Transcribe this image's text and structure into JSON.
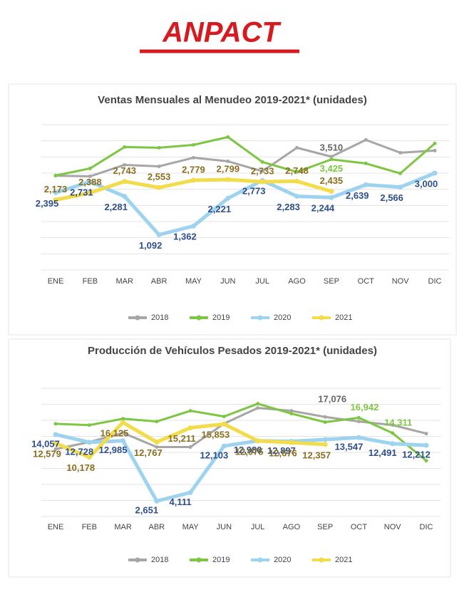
{
  "logo": "ANPACT",
  "chart_data": [
    {
      "type": "line",
      "title": "Ventas Mensuales al Menudeo 2019-2021* (unidades)",
      "categories": [
        "ENE",
        "FEB",
        "MAR",
        "ABR",
        "MAY",
        "JUN",
        "JUL",
        "AGO",
        "SEP",
        "OCT",
        "NOV",
        "DIC"
      ],
      "ylim": [
        0,
        4500
      ],
      "yticks": [
        0,
        500,
        1000,
        1500,
        2000,
        2500,
        3000,
        3500,
        4000,
        4500
      ],
      "grid": true,
      "series": [
        {
          "name": "2018",
          "color": "#a6a6a6",
          "label_color": "#666666",
          "values": [
            2920,
            2900,
            3255,
            3210,
            3477,
            3366,
            3057,
            3786,
            3510,
            4029,
            3631,
            3697
          ],
          "value_labels": [
            null,
            null,
            null,
            null,
            null,
            null,
            null,
            null,
            "3,510",
            null,
            null,
            null
          ]
        },
        {
          "name": "2019",
          "color": "#7dc642",
          "label_color": "#7dc642",
          "values": [
            2925,
            3145,
            3808,
            3786,
            3874,
            4117,
            3344,
            3035,
            3425,
            3300,
            2991,
            3918
          ],
          "value_labels": [
            null,
            null,
            null,
            null,
            null,
            null,
            null,
            null,
            "3,425",
            null,
            null,
            null
          ]
        },
        {
          "name": "2020",
          "color": "#9dd3ef",
          "label_color": "#2e4f8a",
          "values": [
            2395,
            2731,
            2281,
            1092,
            1362,
            2221,
            2773,
            2283,
            2244,
            2639,
            2566,
            3000
          ],
          "value_labels": [
            "2,395",
            "2,731",
            "2,281",
            "1,092",
            "1,362",
            "2,221",
            "2,773",
            "2,283",
            "2,244",
            "2,639",
            "2,566",
            "3,000"
          ]
        },
        {
          "name": "2021",
          "color": "#f2dc4a",
          "label_color": "#8a6d1d",
          "values": [
            2173,
            2388,
            2743,
            2553,
            2779,
            2799,
            2733,
            2748,
            2435,
            null,
            null,
            null
          ],
          "value_labels": [
            "2,173",
            "2,388",
            "2,743",
            "2,553",
            "2,779",
            "2,799",
            "2,733",
            "2,748",
            "2,435",
            null,
            null,
            null
          ]
        }
      ]
    },
    {
      "type": "line",
      "title": "Producción de Vehículos Pesados 2019-2021* (unidades)",
      "categories": [
        "ENE",
        "FEB",
        "MAR",
        "ABR",
        "MAY",
        "JUN",
        "JUL",
        "AGO",
        "SEP",
        "OCT",
        "NOV",
        "DIC"
      ],
      "ylim": [
        0,
        22000
      ],
      "yticks": [
        0,
        2750,
        5500,
        8250,
        11000,
        13750,
        16500,
        19250,
        22000
      ],
      "grid": true,
      "series": [
        {
          "name": "2018",
          "color": "#a6a6a6",
          "label_color": "#666666",
          "values": [
            11550,
            12770,
            14350,
            11910,
            11910,
            15930,
            18620,
            18130,
            17076,
            16300,
            15690,
            14230
          ],
          "value_labels": [
            null,
            null,
            null,
            null,
            null,
            null,
            null,
            null,
            "17,076",
            null,
            null,
            null
          ]
        },
        {
          "name": "2019",
          "color": "#7dc642",
          "label_color": "#7dc642",
          "values": [
            15900,
            15670,
            16770,
            16300,
            18130,
            17160,
            19350,
            17650,
            16180,
            16942,
            14311,
            9570
          ],
          "value_labels": [
            null,
            null,
            null,
            null,
            null,
            null,
            null,
            null,
            null,
            "16,942",
            "14,311",
            null
          ]
        },
        {
          "name": "2020",
          "color": "#9dd3ef",
          "label_color": "#2e4f8a",
          "values": [
            14057,
            12728,
            12985,
            2651,
            4111,
            12103,
            12980,
            12897,
            13200,
            13547,
            12491,
            12212
          ],
          "value_labels": [
            "14,057",
            "12,728",
            "12,985",
            "2,651",
            "4,111",
            "12,103",
            "12,980",
            "12,897",
            null,
            "13,547",
            "12,491",
            "12,212"
          ]
        },
        {
          "name": "2021",
          "color": "#f2dc4a",
          "label_color": "#8a6d1d",
          "values": [
            12579,
            10178,
            16125,
            12767,
            15211,
            15853,
            12975,
            12676,
            12357,
            null,
            null,
            null
          ],
          "value_labels": [
            "12,579",
            "10,178",
            "16,125",
            "12,767",
            "15,211",
            "15,853",
            "12,975",
            "12,676",
            "12,357",
            null,
            null,
            null
          ]
        }
      ]
    }
  ]
}
